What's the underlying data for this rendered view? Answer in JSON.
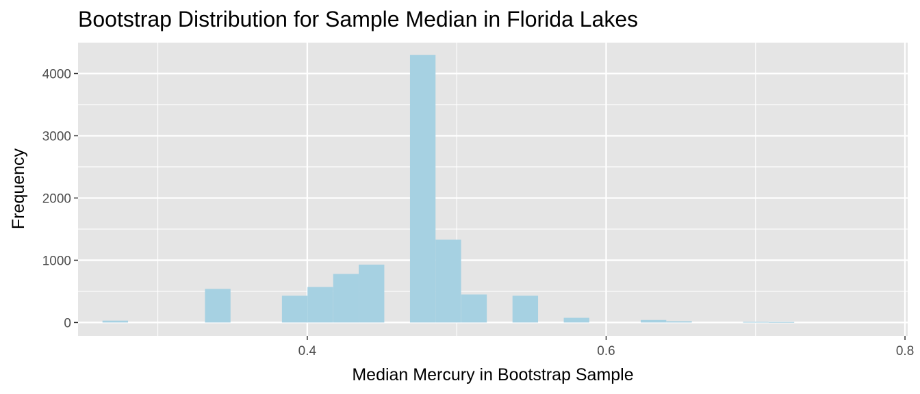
{
  "chart_data": {
    "type": "bar",
    "title": "Bootstrap Distribution for Sample Median in Florida Lakes",
    "xlabel": "Median Mercury in Bootstrap Sample",
    "ylabel": "Frequency",
    "xlim": [
      0.2466,
      0.8018
    ],
    "ylim": [
      -215,
      4500
    ],
    "x_ticks": [
      {
        "value": 0.4,
        "label": "0.4"
      },
      {
        "value": 0.6,
        "label": "0.6"
      },
      {
        "value": 0.8,
        "label": "0.8"
      }
    ],
    "y_ticks": [
      {
        "value": 0,
        "label": "0"
      },
      {
        "value": 1000,
        "label": "1000"
      },
      {
        "value": 2000,
        "label": "2000"
      },
      {
        "value": 3000,
        "label": "3000"
      },
      {
        "value": 4000,
        "label": "4000"
      }
    ],
    "bin_width": 0.0171,
    "bins": [
      {
        "x": 0.2715,
        "count": 30
      },
      {
        "x": 0.3401,
        "count": 540
      },
      {
        "x": 0.3916,
        "count": 430
      },
      {
        "x": 0.4087,
        "count": 570
      },
      {
        "x": 0.4259,
        "count": 780
      },
      {
        "x": 0.443,
        "count": 930
      },
      {
        "x": 0.4773,
        "count": 4300
      },
      {
        "x": 0.4944,
        "count": 1330
      },
      {
        "x": 0.5116,
        "count": 450
      },
      {
        "x": 0.5459,
        "count": 430
      },
      {
        "x": 0.5802,
        "count": 75
      },
      {
        "x": 0.6317,
        "count": 40
      },
      {
        "x": 0.6488,
        "count": 20
      },
      {
        "x": 0.7002,
        "count": 10
      },
      {
        "x": 0.7173,
        "count": 8
      }
    ],
    "grid": true,
    "bar_color": "#a6d1e2",
    "panel_background": "#e5e5e5",
    "grid_color": "#ffffff"
  }
}
